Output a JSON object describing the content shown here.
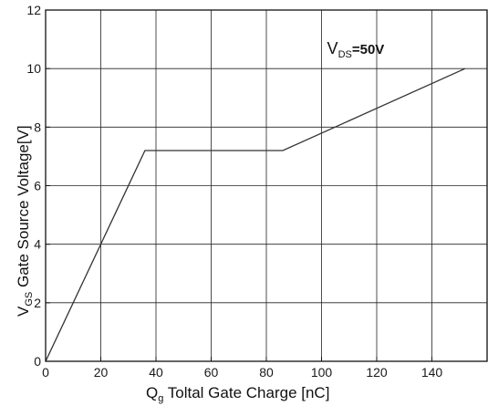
{
  "chart_data": {
    "type": "line",
    "title": "",
    "xlabel": {
      "main": "Q",
      "sub": "g",
      "rest": " Toltal Gate Charge [nC]"
    },
    "ylabel": {
      "main": "V",
      "sub": "GS",
      "rest": " Gate Source Voltage[V]"
    },
    "xlim": [
      0,
      160
    ],
    "ylim": [
      0,
      12
    ],
    "xticks": [
      0,
      20,
      40,
      60,
      80,
      100,
      120,
      140
    ],
    "xtick_labels": [
      "0",
      "20",
      "40",
      "60",
      "80",
      "100",
      "120",
      "140"
    ],
    "yticks": [
      0,
      2,
      4,
      6,
      8,
      10,
      12
    ],
    "ytick_labels": [
      "0",
      "2",
      "4",
      "6",
      "8",
      "10",
      "12"
    ],
    "grid": true,
    "legend": "none",
    "series": [
      {
        "x": [
          0,
          36,
          86,
          152
        ],
        "y": [
          0,
          7.2,
          7.2,
          10.0
        ]
      }
    ],
    "annotations": [
      {
        "main": "V",
        "sub": "DS",
        "rest": "=50V",
        "x": 102,
        "y": 10.5
      }
    ],
    "colors": {
      "line": "#333333",
      "grid": "#222222",
      "frame": "#111111"
    }
  }
}
